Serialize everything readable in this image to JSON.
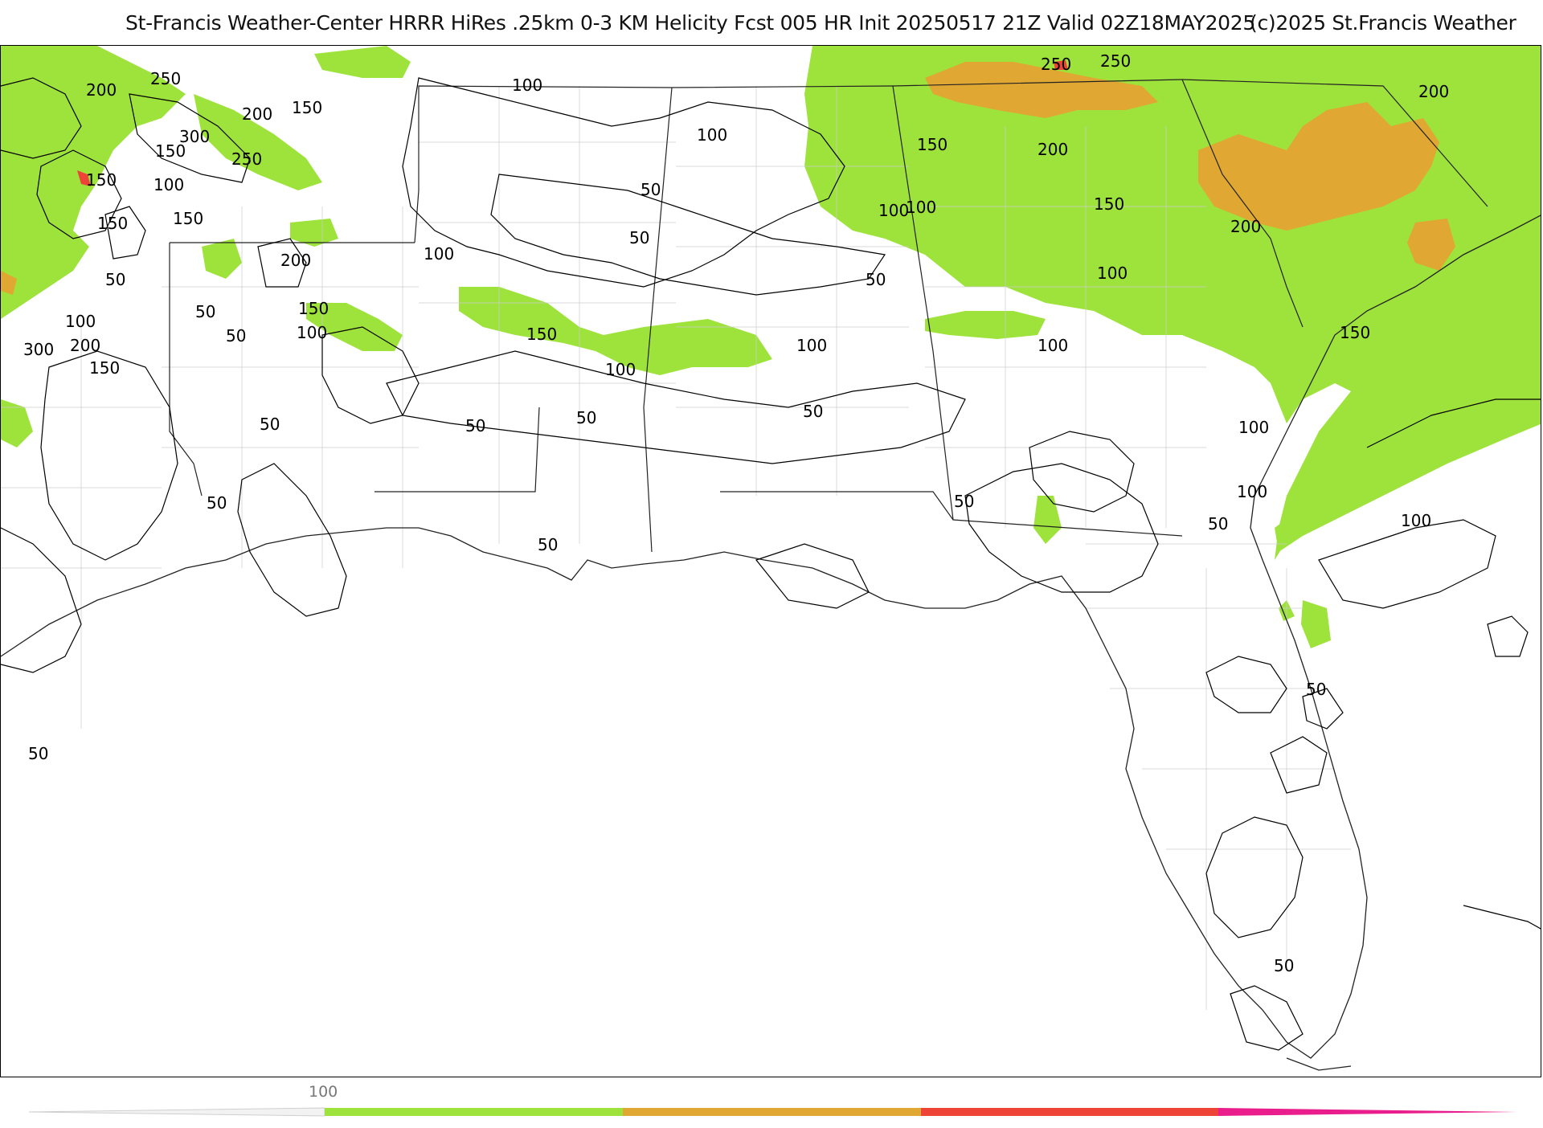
{
  "header": {
    "title": "St-Francis Weather-Center HRRR HiRes .25km 0-3 KM Helicity Fcst 005 HR Init 20250517 21Z  Valid 02Z18MAY2025",
    "copyright": "(c)2025 St.Francis Weather"
  },
  "map": {
    "product": "0-3 KM Helicity",
    "fill_colors": {
      "band_150_250": "#9ee33b",
      "band_250_350": "#e0a733",
      "band_350_450": "#ee4438",
      "band_450_plus": "#e91e8c",
      "low_band": "#ffffff"
    },
    "contour_labels": [
      {
        "text": "250"
      },
      {
        "text": "200"
      },
      {
        "text": "200"
      },
      {
        "text": "150"
      },
      {
        "text": "300"
      },
      {
        "text": "250"
      },
      {
        "text": "150"
      },
      {
        "text": "150"
      },
      {
        "text": "100"
      },
      {
        "text": "150"
      },
      {
        "text": "150"
      },
      {
        "text": "200"
      },
      {
        "text": "50"
      },
      {
        "text": "50"
      },
      {
        "text": "50"
      },
      {
        "text": "100"
      },
      {
        "text": "300"
      },
      {
        "text": "200"
      },
      {
        "text": "150"
      },
      {
        "text": "150"
      },
      {
        "text": "100"
      },
      {
        "text": "100"
      },
      {
        "text": "100"
      },
      {
        "text": "100"
      },
      {
        "text": "50"
      },
      {
        "text": "50"
      },
      {
        "text": "150"
      },
      {
        "text": "100"
      },
      {
        "text": "100"
      },
      {
        "text": "50"
      },
      {
        "text": "50"
      },
      {
        "text": "50"
      },
      {
        "text": "50"
      },
      {
        "text": "50"
      },
      {
        "text": "50"
      },
      {
        "text": "50"
      },
      {
        "text": "100"
      },
      {
        "text": "50"
      },
      {
        "text": "250"
      },
      {
        "text": "250"
      },
      {
        "text": "200"
      },
      {
        "text": "200"
      },
      {
        "text": "150"
      },
      {
        "text": "100"
      },
      {
        "text": "150"
      },
      {
        "text": "200"
      },
      {
        "text": "100"
      },
      {
        "text": "100"
      },
      {
        "text": "150"
      },
      {
        "text": "100"
      },
      {
        "text": "100"
      },
      {
        "text": "50"
      },
      {
        "text": "50"
      },
      {
        "text": "100"
      },
      {
        "text": "50"
      },
      {
        "text": "50"
      }
    ]
  },
  "colorbar": {
    "tick_label": "100",
    "colors": [
      "#9ee33b",
      "#e0a733",
      "#ee4438",
      "#e91e8c"
    ]
  }
}
